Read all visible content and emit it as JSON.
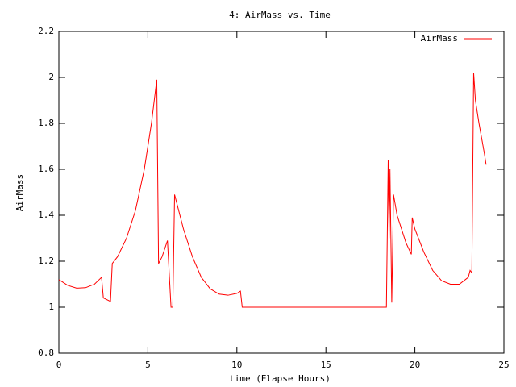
{
  "chart_data": {
    "type": "line",
    "title": "4: AirMass vs. Time",
    "x_label": "time (Elapse Hours)",
    "y_label": "AirMass",
    "x": [
      0,
      0.5,
      1,
      1.5,
      2,
      2.4,
      2.5,
      2.9,
      3,
      3.3,
      3.8,
      4.3,
      4.8,
      5.2,
      5.5,
      5.6,
      5.8,
      6.1,
      6.3,
      6.4,
      6.5,
      7,
      7.5,
      8,
      8.5,
      9,
      9.5,
      10,
      10.2,
      10.3,
      18.4,
      18.5,
      18.55,
      18.6,
      18.7,
      18.8,
      19,
      19.5,
      19.8,
      19.85,
      20,
      20.5,
      21,
      21.5,
      22,
      22.5,
      23,
      23.1,
      23.2,
      23.3,
      23.4,
      23.6,
      23.9,
      24
    ],
    "series": [
      {
        "name": "AirMass",
        "color": "#ff0000",
        "values": [
          1.12,
          1.095,
          1.083,
          1.085,
          1.1,
          1.13,
          1.04,
          1.025,
          1.19,
          1.22,
          1.3,
          1.42,
          1.6,
          1.8,
          1.99,
          1.19,
          1.22,
          1.29,
          1.0,
          1.0,
          1.49,
          1.34,
          1.22,
          1.13,
          1.08,
          1.057,
          1.052,
          1.06,
          1.07,
          1.0,
          1.0,
          1.64,
          1.3,
          1.6,
          1.02,
          1.49,
          1.4,
          1.28,
          1.23,
          1.39,
          1.34,
          1.24,
          1.16,
          1.115,
          1.1,
          1.1,
          1.13,
          1.16,
          1.15,
          2.02,
          1.9,
          1.8,
          1.67,
          1.62
        ]
      }
    ],
    "xlim": [
      0,
      25
    ],
    "xticks": [
      0,
      5,
      10,
      15,
      20,
      25
    ],
    "ylim": [
      0.8,
      2.2
    ],
    "yticks": [
      0.8,
      1,
      1.2,
      1.4,
      1.6,
      1.8,
      2,
      2.2
    ],
    "grid": false,
    "legend": "top-right"
  }
}
